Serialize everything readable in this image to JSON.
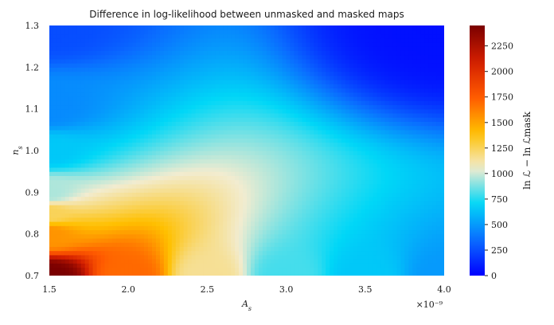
{
  "chart_data": {
    "type": "heatmap",
    "title": "Difference in log-likelihood between unmasked and masked maps",
    "xlabel": "A_s",
    "ylabel": "n_s",
    "colorbar_label": "ln ℒ − ln ℒmask",
    "x_multiplier_label": "×10⁻⁹",
    "xlim": [
      1.5,
      4.0
    ],
    "ylim": [
      0.7,
      1.3
    ],
    "x_ticks": [
      "1.5",
      "2.0",
      "2.5",
      "3.0",
      "3.5",
      "4.0"
    ],
    "y_ticks": [
      "0.7",
      "0.8",
      "0.9",
      "1.0",
      "1.1",
      "1.2",
      "1.3"
    ],
    "colorbar_range": [
      0,
      2450
    ],
    "colorbar_ticks": [
      "0",
      "250",
      "500",
      "750",
      "1000",
      "1250",
      "1500",
      "1750",
      "2000",
      "2250"
    ],
    "colormap": [
      "#0000ff",
      "#0a6cff",
      "#00d7f7",
      "#f2ecd0",
      "#ffc000",
      "#ff5a00",
      "#d21e00",
      "#7a0000"
    ],
    "z_samples": [
      {
        "x": 1.5,
        "y": 0.7,
        "z": 2450
      },
      {
        "x": 1.5,
        "y": 0.8,
        "z": 1550
      },
      {
        "x": 1.5,
        "y": 0.85,
        "z": 1250
      },
      {
        "x": 1.5,
        "y": 0.9,
        "z": 950
      },
      {
        "x": 1.5,
        "y": 1.0,
        "z": 650
      },
      {
        "x": 1.5,
        "y": 1.1,
        "z": 450
      },
      {
        "x": 1.5,
        "y": 1.3,
        "z": 250
      },
      {
        "x": 2.0,
        "y": 0.7,
        "z": 1700
      },
      {
        "x": 2.5,
        "y": 0.7,
        "z": 1150
      },
      {
        "x": 3.0,
        "y": 0.7,
        "z": 800
      },
      {
        "x": 3.5,
        "y": 0.7,
        "z": 650
      },
      {
        "x": 4.0,
        "y": 0.7,
        "z": 500
      },
      {
        "x": 4.0,
        "y": 1.3,
        "z": 50
      }
    ]
  }
}
